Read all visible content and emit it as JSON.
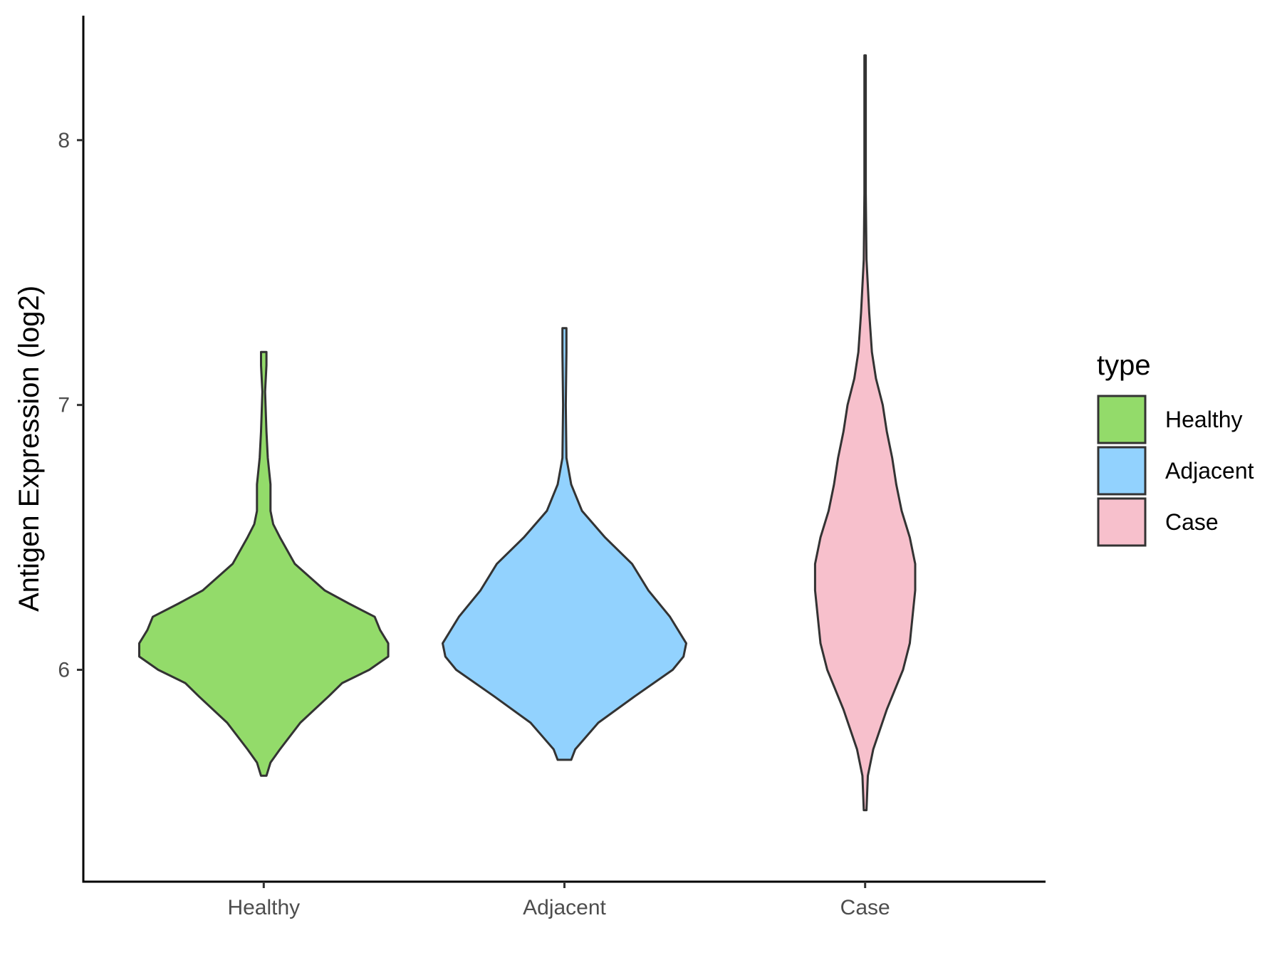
{
  "chart_data": {
    "type": "violin",
    "categories": [
      "Healthy",
      "Adjacent",
      "Case"
    ],
    "ylabel": "Antigen Expression (log2)",
    "xlabel": "",
    "ylim": [
      5.2,
      8.47
    ],
    "yticks": [
      6,
      7,
      8
    ],
    "grid": false,
    "legend": {
      "title": "type",
      "position": "right",
      "entries": [
        "Healthy",
        "Adjacent",
        "Case"
      ]
    },
    "colors": {
      "Healthy": "#93DB6A",
      "Adjacent": "#92D2FE",
      "Case": "#F7C0CC",
      "outline": "#333333"
    },
    "series": [
      {
        "name": "Healthy",
        "y_min": 5.6,
        "y_max": 7.2,
        "density_profile": [
          [
            5.6,
            0.02
          ],
          [
            5.65,
            0.05
          ],
          [
            5.7,
            0.12
          ],
          [
            5.8,
            0.27
          ],
          [
            5.9,
            0.48
          ],
          [
            5.95,
            0.58
          ],
          [
            6.0,
            0.78
          ],
          [
            6.05,
            0.92
          ],
          [
            6.1,
            0.92
          ],
          [
            6.15,
            0.86
          ],
          [
            6.2,
            0.82
          ],
          [
            6.25,
            0.63
          ],
          [
            6.3,
            0.45
          ],
          [
            6.4,
            0.23
          ],
          [
            6.5,
            0.12
          ],
          [
            6.55,
            0.07
          ],
          [
            6.6,
            0.05
          ],
          [
            6.7,
            0.05
          ],
          [
            6.8,
            0.03
          ],
          [
            6.9,
            0.02
          ],
          [
            7.05,
            0.01
          ],
          [
            7.15,
            0.02
          ],
          [
            7.2,
            0.02
          ]
        ]
      },
      {
        "name": "Adjacent",
        "y_min": 5.66,
        "y_max": 7.29,
        "density_profile": [
          [
            5.66,
            0.05
          ],
          [
            5.7,
            0.08
          ],
          [
            5.8,
            0.25
          ],
          [
            5.9,
            0.52
          ],
          [
            6.0,
            0.8
          ],
          [
            6.05,
            0.88
          ],
          [
            6.1,
            0.9
          ],
          [
            6.2,
            0.78
          ],
          [
            6.3,
            0.62
          ],
          [
            6.4,
            0.5
          ],
          [
            6.5,
            0.3
          ],
          [
            6.6,
            0.13
          ],
          [
            6.7,
            0.05
          ],
          [
            6.8,
            0.015
          ],
          [
            7.0,
            0.01
          ],
          [
            7.2,
            0.015
          ],
          [
            7.29,
            0.015
          ]
        ]
      },
      {
        "name": "Case",
        "y_min": 5.47,
        "y_max": 8.32,
        "density_profile": [
          [
            5.47,
            0.01
          ],
          [
            5.6,
            0.02
          ],
          [
            5.7,
            0.06
          ],
          [
            5.85,
            0.16
          ],
          [
            6.0,
            0.28
          ],
          [
            6.1,
            0.33
          ],
          [
            6.2,
            0.35
          ],
          [
            6.3,
            0.37
          ],
          [
            6.4,
            0.37
          ],
          [
            6.5,
            0.33
          ],
          [
            6.6,
            0.27
          ],
          [
            6.7,
            0.23
          ],
          [
            6.8,
            0.2
          ],
          [
            6.9,
            0.16
          ],
          [
            7.0,
            0.13
          ],
          [
            7.1,
            0.08
          ],
          [
            7.2,
            0.05
          ],
          [
            7.35,
            0.03
          ],
          [
            7.55,
            0.01
          ],
          [
            7.8,
            0.005
          ],
          [
            8.0,
            0.005
          ],
          [
            8.32,
            0.005
          ]
        ]
      }
    ]
  }
}
